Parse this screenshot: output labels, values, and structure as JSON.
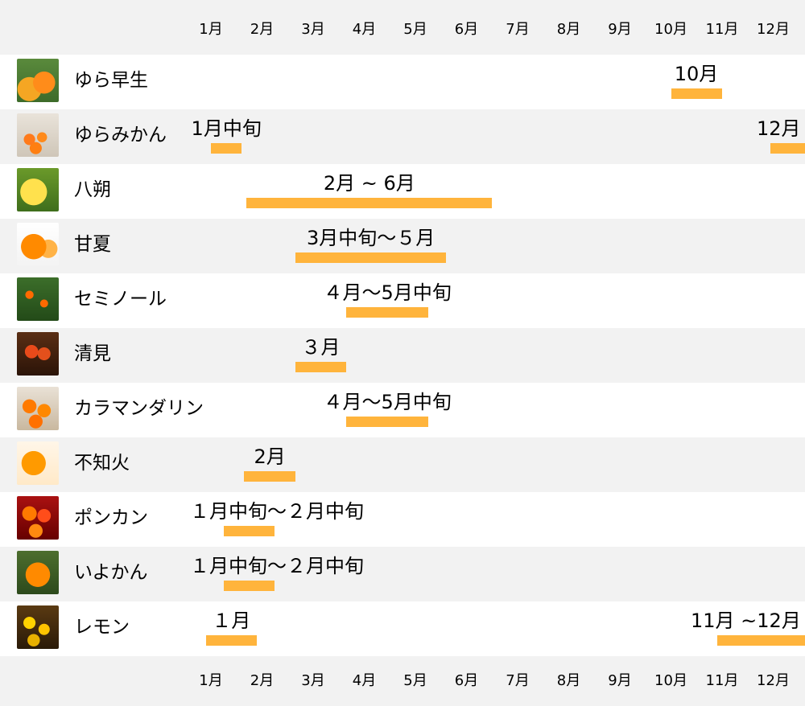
{
  "months": [
    "1月",
    "2月",
    "3月",
    "4月",
    "5月",
    "6月",
    "7月",
    "8月",
    "9月",
    "10月",
    "11月",
    "12月"
  ],
  "colors": {
    "bar": "#ffb43c",
    "row_alt": "#f2f2f2",
    "row": "#ffffff"
  },
  "chart_data": {
    "type": "gantt",
    "title": "",
    "x_axis": [
      "1月",
      "2月",
      "3月",
      "4月",
      "5月",
      "6月",
      "7月",
      "8月",
      "9月",
      "10月",
      "11月",
      "12月"
    ],
    "rows": [
      {
        "name": "ゆら早生",
        "thumb": "orange-halves-icon",
        "bars": [
          {
            "start": 9.5,
            "end": 10.5,
            "label": "10月"
          }
        ]
      },
      {
        "name": "ゆらみかん",
        "thumb": "boxed-mandarins-icon",
        "bars": [
          {
            "start": 0.5,
            "end": 1.1,
            "label": "1月中旬"
          },
          {
            "start": 11.45,
            "end": 12.5,
            "label": "12月"
          }
        ]
      },
      {
        "name": "八朔",
        "thumb": "yellow-citrus-icon",
        "bars": [
          {
            "start": 1.2,
            "end": 6.0,
            "label": "2月 ~ 6月"
          }
        ]
      },
      {
        "name": "甘夏",
        "thumb": "orange-cut-icon",
        "bars": [
          {
            "start": 2.15,
            "end": 5.1,
            "label": "3月中旬〜５月"
          }
        ]
      },
      {
        "name": "セミノール",
        "thumb": "orange-tree-icon",
        "bars": [
          {
            "start": 3.15,
            "end": 4.75,
            "label": "４月〜5月中旬"
          }
        ]
      },
      {
        "name": "清見",
        "thumb": "red-oranges-basket-icon",
        "bars": [
          {
            "start": 2.15,
            "end": 3.15,
            "label": "３月"
          }
        ]
      },
      {
        "name": "カラマンダリン",
        "thumb": "mandarin-pile-icon",
        "bars": [
          {
            "start": 3.15,
            "end": 4.75,
            "label": "４月〜5月中旬"
          }
        ]
      },
      {
        "name": "不知火",
        "thumb": "dekopon-icon",
        "bars": [
          {
            "start": 1.15,
            "end": 2.15,
            "label": "2月"
          }
        ]
      },
      {
        "name": "ポンカン",
        "thumb": "ponkan-pile-icon",
        "bars": [
          {
            "start": 0.75,
            "end": 1.75,
            "label": "１月中旬〜２月中旬"
          }
        ]
      },
      {
        "name": "いよかん",
        "thumb": "iyokan-icon",
        "bars": [
          {
            "start": 0.75,
            "end": 1.75,
            "label": "１月中旬〜２月中旬"
          }
        ]
      },
      {
        "name": "レモン",
        "thumb": "lemons-icon",
        "bars": [
          {
            "start": 0.4,
            "end": 1.4,
            "label": "１月"
          },
          {
            "start": 10.4,
            "end": 12.35,
            "label": "11月 ~12月"
          }
        ]
      }
    ]
  }
}
